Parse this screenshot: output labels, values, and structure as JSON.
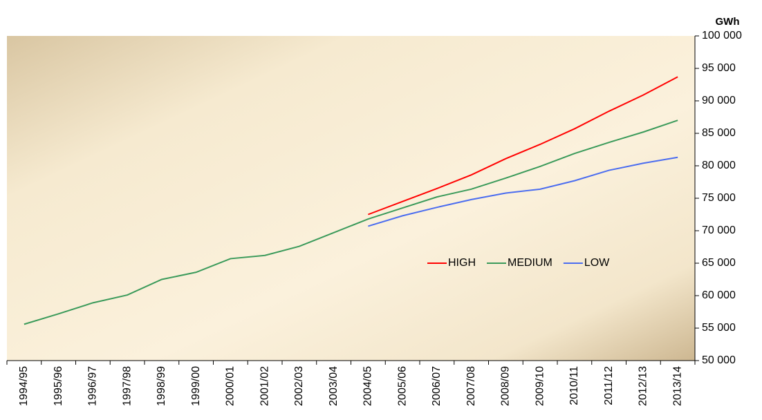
{
  "chart_data": {
    "type": "line",
    "unit_label": "GWh",
    "categories": [
      "1994/95",
      "1995/96",
      "1996/97",
      "1997/98",
      "1998/99",
      "1999/00",
      "2000/01",
      "2001/02",
      "2002/03",
      "2003/04",
      "2004/05",
      "2005/06",
      "2006/07",
      "2007/08",
      "2008/09",
      "2009/10",
      "2010/11",
      "2011/12",
      "2012/13",
      "2013/14"
    ],
    "series": [
      {
        "name": "HIGH",
        "color": "#ff0000",
        "values": [
          null,
          null,
          null,
          null,
          null,
          null,
          null,
          null,
          null,
          null,
          72500,
          74500,
          76500,
          78600,
          81100,
          83300,
          85700,
          88400,
          90900,
          93700
        ]
      },
      {
        "name": "MEDIUM",
        "color": "#3a9a5a",
        "values": [
          55600,
          57200,
          58900,
          60100,
          62500,
          63600,
          65700,
          66200,
          67600,
          69700,
          71800,
          73500,
          75200,
          76400,
          78100,
          79900,
          81900,
          83600,
          85200,
          87000
        ]
      },
      {
        "name": "LOW",
        "color": "#4a6cf0",
        "values": [
          null,
          null,
          null,
          null,
          null,
          null,
          null,
          null,
          null,
          null,
          70700,
          72300,
          73600,
          74800,
          75800,
          76400,
          77700,
          79300,
          80400,
          81300
        ]
      }
    ],
    "ylim": [
      50000,
      100000
    ],
    "yticks": [
      {
        "value": 50000,
        "label": "50 000"
      },
      {
        "value": 55000,
        "label": "55 000"
      },
      {
        "value": 60000,
        "label": "60 000"
      },
      {
        "value": 65000,
        "label": "65 000"
      },
      {
        "value": 70000,
        "label": "70 000"
      },
      {
        "value": 75000,
        "label": "75 000"
      },
      {
        "value": 80000,
        "label": "80 000"
      },
      {
        "value": 85000,
        "label": "85 000"
      },
      {
        "value": 90000,
        "label": "90 000"
      },
      {
        "value": 95000,
        "label": "95 000"
      },
      {
        "value": 100000,
        "label": "100 000"
      }
    ],
    "y_axis_side": "right",
    "grid": false,
    "legend": "center-right"
  }
}
